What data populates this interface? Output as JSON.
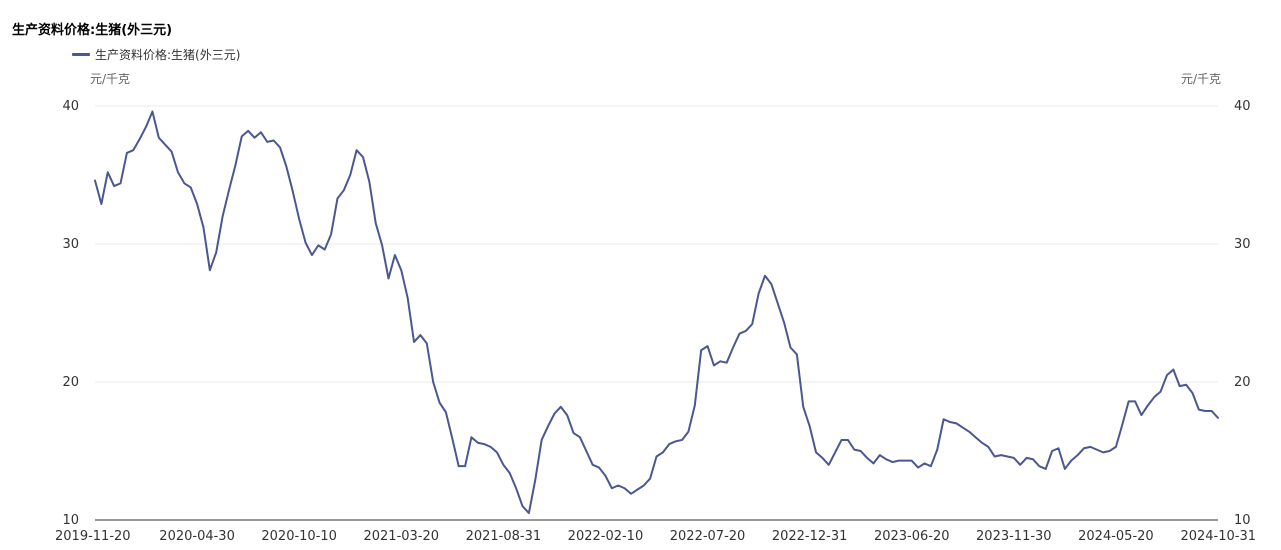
{
  "chart_data": {
    "type": "line",
    "title": "生产资料价格:生猪(外三元)",
    "unit_left": "元/千克",
    "unit_right": "元/千克",
    "ylim": [
      10,
      40
    ],
    "y_ticks": [
      "10",
      "20",
      "30",
      "40"
    ],
    "x_ticks": [
      "2019-11-20",
      "2020-04-30",
      "2020-10-10",
      "2021-03-20",
      "2021-08-31",
      "2022-02-10",
      "2022-07-20",
      "2022-12-31",
      "2023-06-20",
      "2023-11-30",
      "2024-05-20",
      "2024-10-31"
    ],
    "grid": true,
    "legend_position": "top-left",
    "series": [
      {
        "name": "生产资料价格:生猪(外三元)",
        "color": "#4a5790",
        "values": [
          34.6,
          32.9,
          35.2,
          34.2,
          34.4,
          36.6,
          36.8,
          37.6,
          38.5,
          39.6,
          37.7,
          37.2,
          36.7,
          35.2,
          34.4,
          34.1,
          32.9,
          31.2,
          28.1,
          29.4,
          32.0,
          33.9,
          35.7,
          37.8,
          38.2,
          37.7,
          38.1,
          37.4,
          37.5,
          37.0,
          35.6,
          33.8,
          31.8,
          30.1,
          29.2,
          29.9,
          29.6,
          30.7,
          33.3,
          33.9,
          35.0,
          36.8,
          36.3,
          34.5,
          31.5,
          29.9,
          27.5,
          29.2,
          28.1,
          26.1,
          22.9,
          23.4,
          22.8,
          20.0,
          18.5,
          17.8,
          15.9,
          13.9,
          13.9,
          16.0,
          15.6,
          15.5,
          15.3,
          14.9,
          14.0,
          13.4,
          12.3,
          11.0,
          10.5,
          12.9,
          15.8,
          16.8,
          17.7,
          18.2,
          17.6,
          16.3,
          16.0,
          15.0,
          14.0,
          13.8,
          13.2,
          12.3,
          12.5,
          12.3,
          11.9,
          12.2,
          12.5,
          13.0,
          14.6,
          14.9,
          15.5,
          15.7,
          15.8,
          16.4,
          18.3,
          22.3,
          22.6,
          21.2,
          21.5,
          21.4,
          22.5,
          23.5,
          23.7,
          24.2,
          26.4,
          27.7,
          27.1,
          25.7,
          24.3,
          22.5,
          22.0,
          18.2,
          16.8,
          14.9,
          14.5,
          14.0,
          14.9,
          15.8,
          15.8,
          15.1,
          15.0,
          14.5,
          14.1,
          14.7,
          14.4,
          14.2,
          14.3,
          14.3,
          14.3,
          13.8,
          14.1,
          13.9,
          15.1,
          17.3,
          17.1,
          17.0,
          16.7,
          16.4,
          16.0,
          15.6,
          15.3,
          14.6,
          14.7,
          14.6,
          14.5,
          14.0,
          14.5,
          14.4,
          13.9,
          13.7,
          15.0,
          15.2,
          13.7,
          14.3,
          14.7,
          15.2,
          15.3,
          15.1,
          14.9,
          15.0,
          15.3,
          16.9,
          18.6,
          18.6,
          17.6,
          18.3,
          18.9,
          19.3,
          20.5,
          20.9,
          19.7,
          19.8,
          19.2,
          18.0,
          17.9,
          17.9,
          17.4
        ]
      }
    ]
  }
}
